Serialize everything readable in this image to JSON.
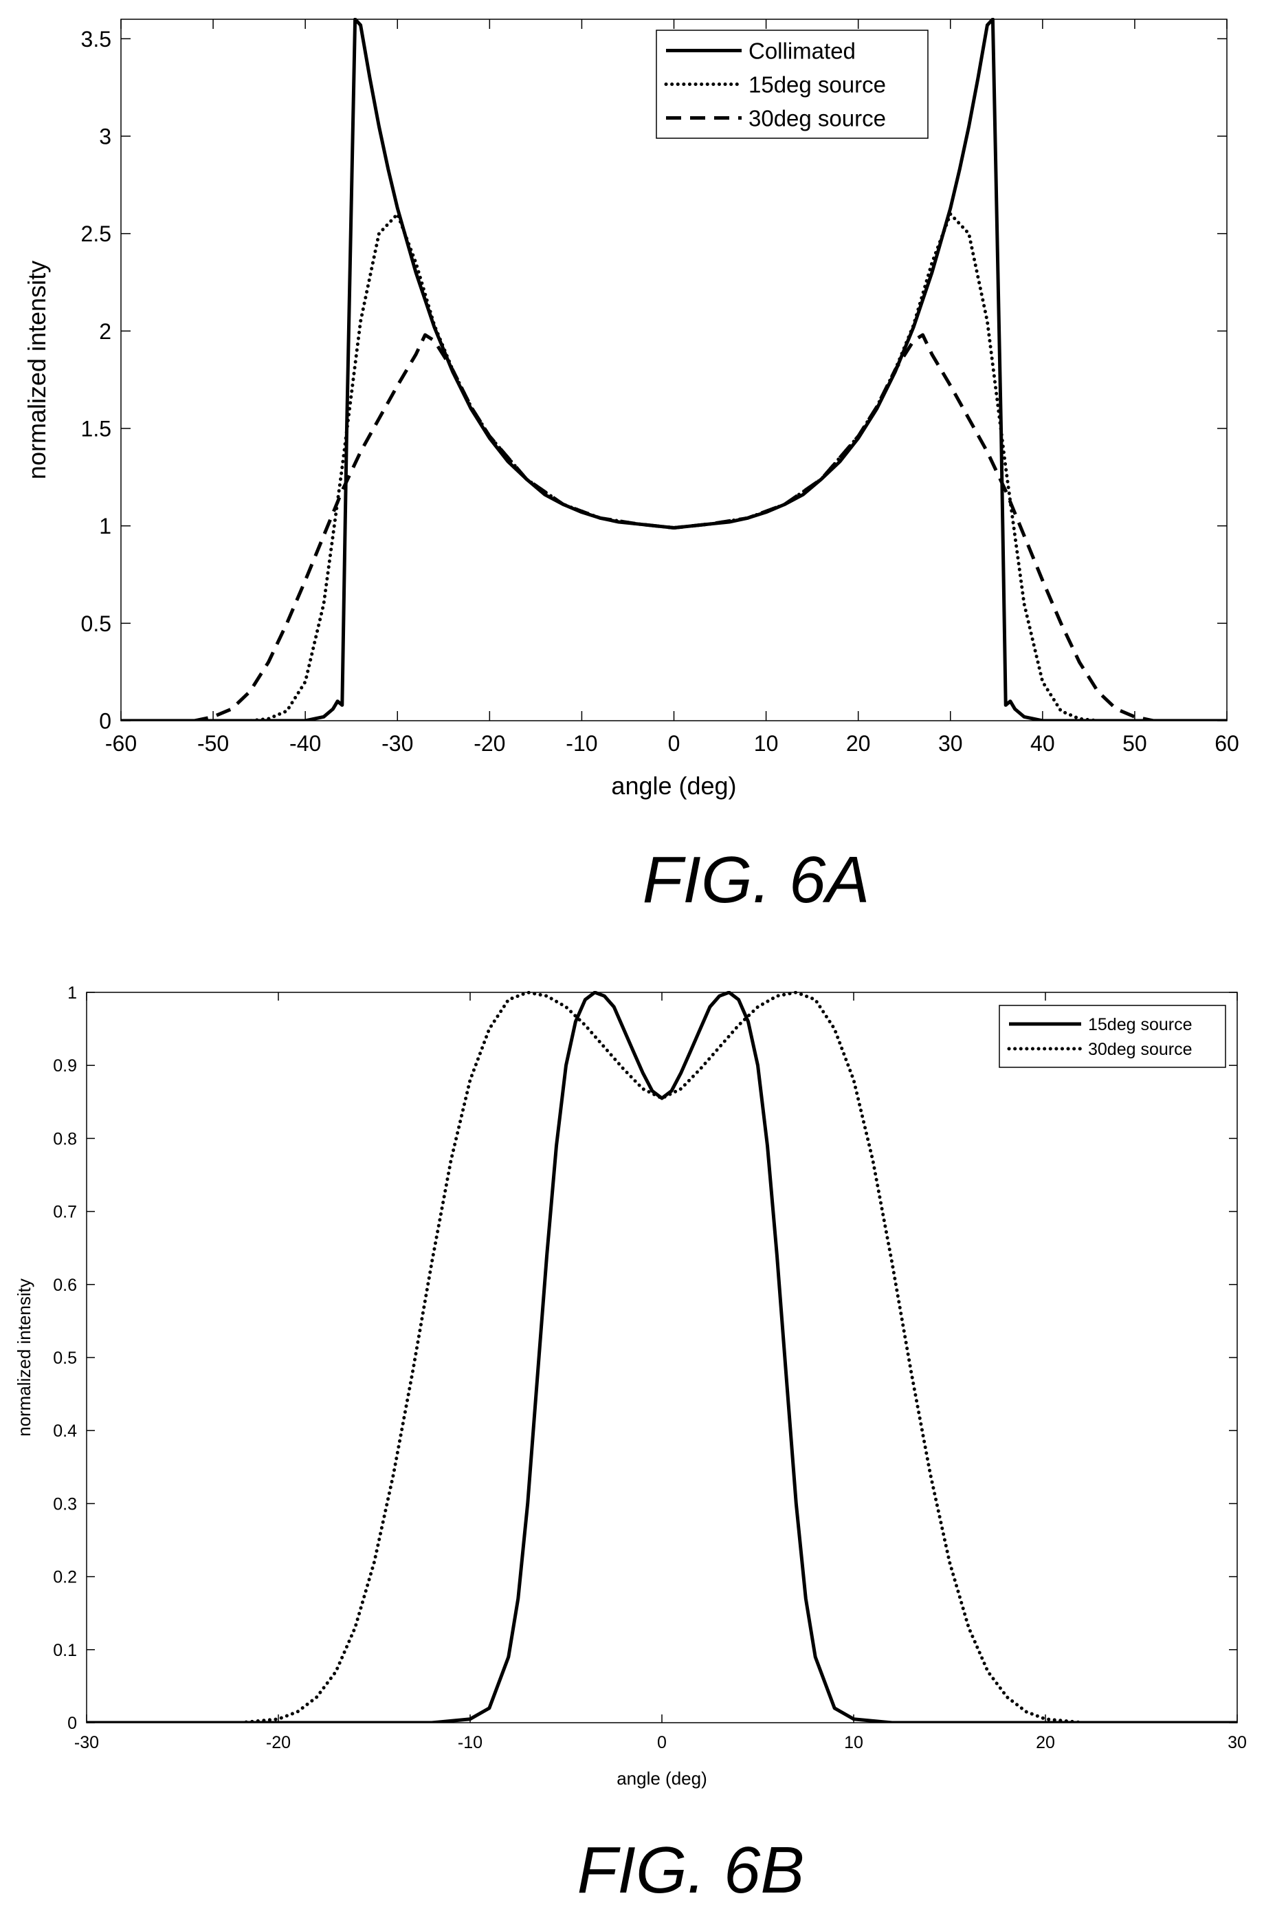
{
  "chart_data": [
    {
      "type": "line",
      "caption": "FIG. 6A",
      "xlabel": "angle (deg)",
      "ylabel": "normalized intensity",
      "xlim": [
        -60,
        60
      ],
      "ylim": [
        0,
        3.6
      ],
      "xticks": [
        -60,
        -50,
        -40,
        -30,
        -20,
        -10,
        0,
        10,
        20,
        30,
        40,
        50,
        60
      ],
      "yticks": [
        0,
        0.5,
        1,
        1.5,
        2,
        2.5,
        3,
        3.5
      ],
      "grid": false,
      "legend_position": "top-right",
      "series": [
        {
          "name": "Collimated",
          "style": "solid",
          "x": [
            -60,
            -40,
            -38,
            -37,
            -36.5,
            -36,
            -35.5,
            -34.6,
            -34,
            -33,
            -32,
            -31,
            -30,
            -28,
            -26,
            -24,
            -22,
            -20,
            -18,
            -16,
            -14,
            -12,
            -10,
            -8,
            -6,
            -4,
            -2,
            0,
            2,
            4,
            6,
            8,
            10,
            12,
            14,
            16,
            18,
            20,
            22,
            24,
            26,
            28,
            30,
            31,
            32,
            33,
            34,
            34.6,
            35.5,
            36,
            36.5,
            37,
            38,
            40,
            60
          ],
          "y": [
            0,
            0,
            0.02,
            0.06,
            0.1,
            0.08,
            1.5,
            3.6,
            3.57,
            3.3,
            3.05,
            2.83,
            2.63,
            2.3,
            2.02,
            1.79,
            1.6,
            1.45,
            1.33,
            1.24,
            1.16,
            1.11,
            1.07,
            1.04,
            1.02,
            1.01,
            1.0,
            0.99,
            1.0,
            1.01,
            1.02,
            1.04,
            1.07,
            1.11,
            1.16,
            1.24,
            1.33,
            1.45,
            1.6,
            1.79,
            2.02,
            2.3,
            2.63,
            2.83,
            3.05,
            3.3,
            3.57,
            3.6,
            1.5,
            0.08,
            0.1,
            0.06,
            0.02,
            0,
            0
          ]
        },
        {
          "name": "15deg source",
          "style": "dotted",
          "x": [
            -60,
            -46,
            -44,
            -42,
            -40,
            -38,
            -36,
            -34,
            -32,
            -30,
            -28,
            -26,
            -24,
            -22,
            -20,
            -16,
            -12,
            -8,
            -4,
            0,
            4,
            8,
            12,
            16,
            20,
            22,
            24,
            26,
            28,
            30,
            32,
            34,
            36,
            38,
            40,
            42,
            44,
            46,
            60
          ],
          "y": [
            0,
            0,
            0.01,
            0.05,
            0.2,
            0.6,
            1.3,
            2.05,
            2.5,
            2.6,
            2.35,
            2.03,
            1.8,
            1.61,
            1.46,
            1.24,
            1.11,
            1.04,
            1.01,
            0.99,
            1.01,
            1.04,
            1.11,
            1.24,
            1.46,
            1.61,
            1.8,
            2.03,
            2.35,
            2.6,
            2.5,
            2.05,
            1.3,
            0.6,
            0.2,
            0.05,
            0.01,
            0,
            0
          ]
        },
        {
          "name": "30deg source",
          "style": "dashed",
          "x": [
            -60,
            -52,
            -50,
            -48,
            -46,
            -44,
            -42,
            -40,
            -38,
            -36,
            -34,
            -32,
            -30,
            -28,
            -27,
            -26,
            -24,
            -22,
            -20,
            -16,
            -12,
            -8,
            -4,
            0,
            4,
            8,
            12,
            16,
            20,
            22,
            24,
            26,
            27,
            28,
            30,
            32,
            34,
            36,
            38,
            40,
            42,
            44,
            46,
            48,
            50,
            52,
            60
          ],
          "y": [
            0,
            0,
            0.02,
            0.06,
            0.15,
            0.3,
            0.5,
            0.72,
            0.95,
            1.18,
            1.38,
            1.55,
            1.72,
            1.88,
            1.98,
            1.95,
            1.8,
            1.61,
            1.46,
            1.24,
            1.11,
            1.04,
            1.01,
            0.99,
            1.01,
            1.04,
            1.11,
            1.24,
            1.46,
            1.61,
            1.8,
            1.95,
            1.98,
            1.88,
            1.72,
            1.55,
            1.38,
            1.18,
            0.95,
            0.72,
            0.5,
            0.3,
            0.15,
            0.06,
            0.02,
            0,
            0
          ]
        }
      ]
    },
    {
      "type": "line",
      "caption": "FIG. 6B",
      "xlabel": "angle (deg)",
      "ylabel": "normalized intensity",
      "xlim": [
        -30,
        30
      ],
      "ylim": [
        0,
        1
      ],
      "xticks": [
        -30,
        -20,
        -10,
        0,
        10,
        20,
        30
      ],
      "yticks": [
        0,
        0.1,
        0.2,
        0.3,
        0.4,
        0.5,
        0.6,
        0.7,
        0.8,
        0.9,
        1
      ],
      "grid": false,
      "legend_position": "top-right",
      "series": [
        {
          "name": "15deg source",
          "style": "solid",
          "x": [
            -30,
            -12,
            -10,
            -9,
            -8,
            -7.5,
            -7,
            -6.5,
            -6,
            -5.5,
            -5,
            -4.5,
            -4,
            -3.5,
            -3,
            -2.5,
            -2,
            -1.5,
            -1,
            -0.5,
            0,
            0.5,
            1,
            1.5,
            2,
            2.5,
            3,
            3.5,
            4,
            4.5,
            5,
            5.5,
            6,
            6.5,
            7,
            7.5,
            8,
            9,
            10,
            12,
            30
          ],
          "y": [
            0,
            0,
            0.005,
            0.02,
            0.09,
            0.17,
            0.3,
            0.47,
            0.64,
            0.79,
            0.9,
            0.96,
            0.99,
            1.0,
            0.995,
            0.98,
            0.95,
            0.92,
            0.89,
            0.865,
            0.855,
            0.865,
            0.89,
            0.92,
            0.95,
            0.98,
            0.995,
            1.0,
            0.99,
            0.96,
            0.9,
            0.79,
            0.64,
            0.47,
            0.3,
            0.17,
            0.09,
            0.02,
            0.005,
            0,
            0
          ]
        },
        {
          "name": "30deg source",
          "style": "dotted",
          "x": [
            -30,
            -22,
            -20,
            -19,
            -18,
            -17,
            -16,
            -15,
            -14,
            -13,
            -12,
            -11,
            -10,
            -9,
            -8,
            -7,
            -6,
            -5,
            -4,
            -3,
            -2,
            -1,
            0,
            1,
            2,
            3,
            4,
            5,
            6,
            7,
            8,
            9,
            10,
            11,
            12,
            13,
            14,
            15,
            16,
            17,
            18,
            19,
            20,
            22,
            30
          ],
          "y": [
            0,
            0,
            0.005,
            0.015,
            0.035,
            0.07,
            0.13,
            0.22,
            0.34,
            0.48,
            0.63,
            0.77,
            0.88,
            0.95,
            0.99,
            1.0,
            0.995,
            0.98,
            0.955,
            0.925,
            0.895,
            0.868,
            0.855,
            0.868,
            0.895,
            0.925,
            0.955,
            0.98,
            0.995,
            1.0,
            0.99,
            0.95,
            0.88,
            0.77,
            0.63,
            0.48,
            0.34,
            0.22,
            0.13,
            0.07,
            0.035,
            0.015,
            0.005,
            0,
            0
          ]
        }
      ]
    }
  ]
}
